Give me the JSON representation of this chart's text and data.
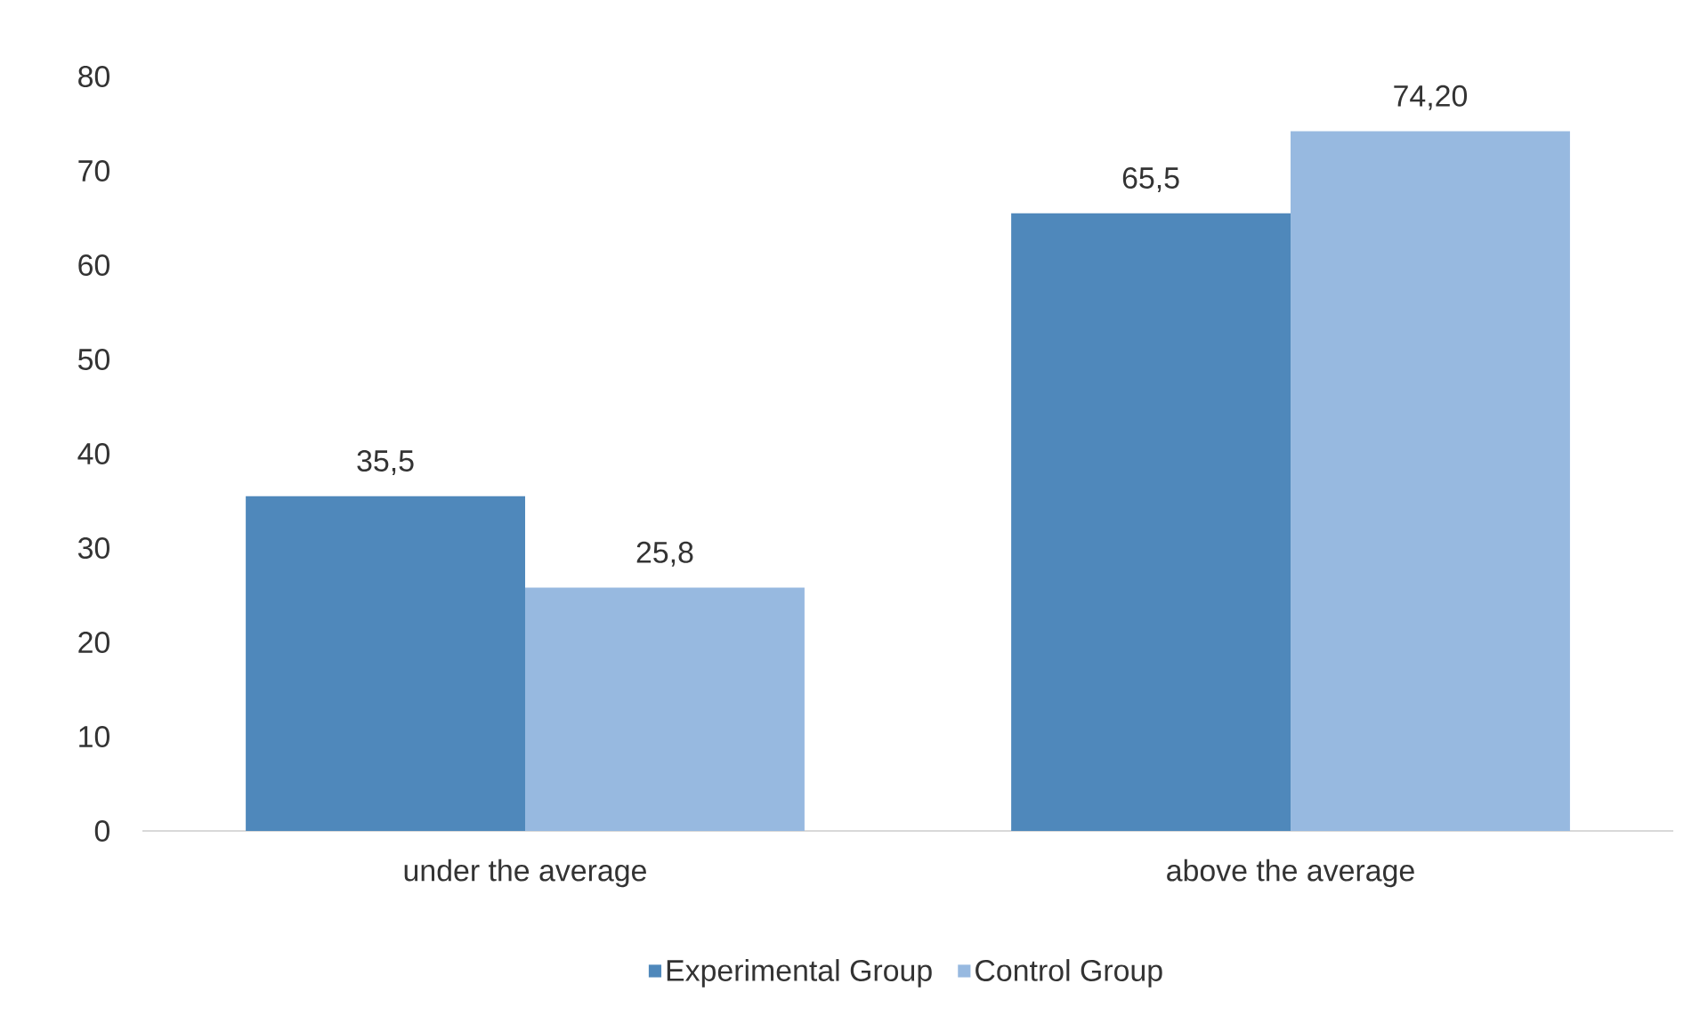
{
  "chart_data": {
    "type": "bar",
    "categories": [
      "under the average",
      "above the average"
    ],
    "series": [
      {
        "name": "Experimental Group",
        "color": "#4f88bb",
        "values": [
          35.5,
          65.5
        ],
        "value_labels": [
          "35,5",
          "65,5"
        ]
      },
      {
        "name": "Control Group",
        "color": "#97b9e0",
        "values": [
          25.8,
          74.2
        ],
        "value_labels": [
          "25,8",
          "74,20"
        ]
      }
    ],
    "ylim": [
      0,
      80
    ],
    "yticks": [
      0,
      10,
      20,
      30,
      40,
      50,
      60,
      70,
      80
    ],
    "grid": false,
    "legend": "bottom"
  }
}
